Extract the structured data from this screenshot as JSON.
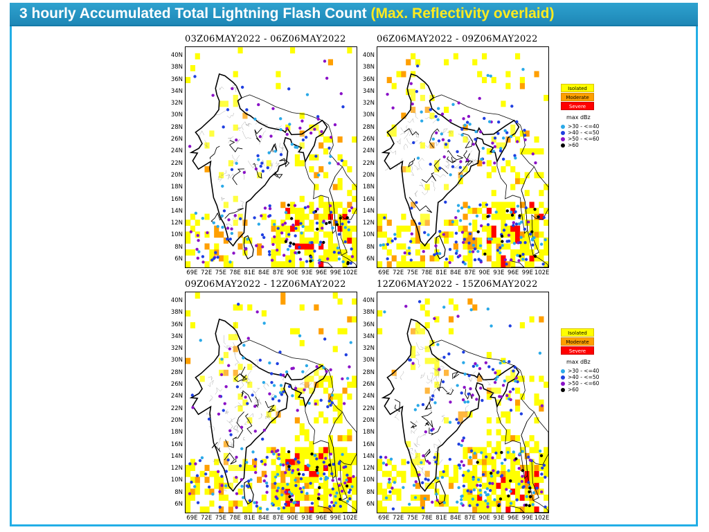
{
  "header": {
    "title_main": "3 hourly Accumulated Total Lightning Flash Count",
    "title_overlay": "(Max. Reflectivity overlaid)"
  },
  "axes": {
    "y_ticks": [
      "40N",
      "38N",
      "36N",
      "34N",
      "32N",
      "30N",
      "28N",
      "26N",
      "24N",
      "22N",
      "20N",
      "18N",
      "16N",
      "14N",
      "12N",
      "10N",
      "8N",
      "6N"
    ],
    "x_ticks": [
      "69E",
      "72E",
      "75E",
      "78E",
      "81E",
      "84E",
      "87E",
      "90E",
      "93E",
      "96E",
      "99E",
      "102E"
    ]
  },
  "panels": [
    {
      "title": "03Z06MAY2022 - 06Z06MAY2022",
      "seed": 11,
      "coverage": 0.2
    },
    {
      "title": "06Z06MAY2022 - 09Z06MAY2022",
      "seed": 23,
      "coverage": 0.27
    },
    {
      "title": "09Z06MAY2022 - 12Z06MAY2022",
      "seed": 37,
      "coverage": 0.4
    },
    {
      "title": "12Z06MAY2022 - 15Z06MAY2022",
      "seed": 53,
      "coverage": 0.33
    }
  ],
  "legend": {
    "categories": [
      {
        "label": "Isolated",
        "color": "#ffff00"
      },
      {
        "label": "Moderate",
        "color": "#ff9f00"
      },
      {
        "label": "Severe",
        "color": "#ff0000"
      }
    ],
    "reflectivity_title": "max dBz",
    "reflectivity": [
      {
        "label": ">30 - <=40",
        "color": "#2aa9e8"
      },
      {
        "label": ">40 - <=50",
        "color": "#1f3fe0"
      },
      {
        "label": ">50 - <=60",
        "color": "#8a12c7"
      },
      {
        "label": ">60",
        "color": "#000000"
      }
    ]
  },
  "colors": {
    "title_bar": "#1e87b6",
    "frame": "#22aee6",
    "title_text": "#ffffff",
    "title_overlay_text": "#ffeb1f"
  }
}
